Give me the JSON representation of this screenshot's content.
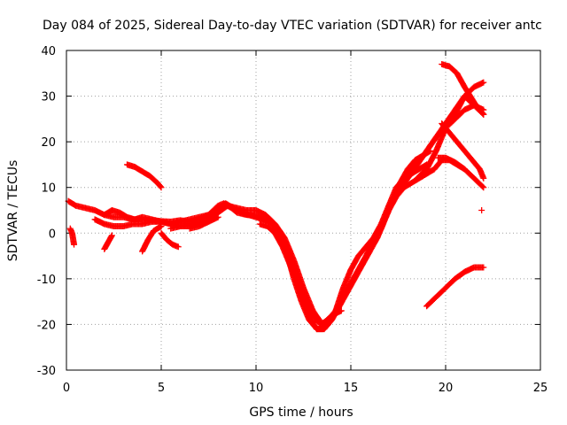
{
  "chart_data": {
    "type": "scatter",
    "title": "Day 084 of 2025, Sidereal Day-to-day VTEC variation (SDTVAR) for receiver antc",
    "xlabel": "GPS time / hours",
    "ylabel": "SDTVAR / TECUs",
    "xlim": [
      0,
      25
    ],
    "ylim": [
      -30,
      40
    ],
    "xticks": [
      0,
      5,
      10,
      15,
      20,
      25
    ],
    "yticks": [
      -30,
      -20,
      -10,
      0,
      10,
      20,
      30,
      40
    ],
    "grid": true,
    "marker": "+",
    "color": "#ff0000",
    "series": [
      {
        "name": "arc-main-1",
        "x": [
          0.1,
          0.5,
          1.0,
          1.5,
          2.0,
          2.5,
          3.0,
          3.5,
          4.0,
          4.5,
          5.0,
          5.5,
          6.0,
          6.5,
          7.0,
          7.5,
          8.0,
          8.3,
          8.7,
          9.0,
          9.5,
          10.0,
          10.5,
          11.0,
          11.5,
          12.0,
          12.3,
          12.6,
          12.9,
          13.2,
          13.5,
          13.8,
          14.2,
          14.6,
          15.0,
          15.4,
          15.8,
          16.2,
          16.6,
          17.0,
          17.4,
          17.8,
          18.2,
          18.6,
          19.0
        ],
        "y": [
          7,
          6,
          5.5,
          5,
          4,
          3.5,
          3.5,
          3,
          3,
          2.8,
          2.6,
          2.5,
          2.8,
          2.5,
          3,
          4,
          6,
          6.5,
          5.5,
          4.5,
          4,
          3.8,
          3,
          1.5,
          -2,
          -8,
          -12,
          -16,
          -19,
          -21,
          -21,
          -20,
          -17,
          -12,
          -8,
          -5,
          -3,
          -1,
          2,
          6,
          10,
          12,
          13,
          14,
          15
        ]
      },
      {
        "name": "arc-main-2",
        "x": [
          2.0,
          2.4,
          2.8,
          3.2,
          3.6,
          4.0,
          4.5,
          5.0,
          5.5,
          6.0,
          6.5,
          7.0,
          7.5,
          8.0,
          8.4,
          8.8,
          9.2,
          9.6,
          10.0,
          10.4,
          10.8,
          11.2,
          11.6,
          12.0,
          12.4,
          12.8,
          13.2,
          13.6,
          14.0,
          14.4,
          14.8,
          15.2,
          15.6,
          16.0,
          16.4,
          16.8,
          17.2,
          17.6,
          18.0,
          18.4,
          18.8,
          19.2
        ],
        "y": [
          4,
          5,
          4.5,
          3.5,
          3,
          3.5,
          3,
          2.5,
          2,
          2.5,
          3,
          3.5,
          4,
          5.5,
          6.5,
          5.5,
          4.5,
          4,
          3.5,
          3,
          2.5,
          0,
          -4,
          -10,
          -15,
          -19,
          -21,
          -21,
          -19,
          -16,
          -13,
          -10,
          -7,
          -4,
          -1,
          3,
          7,
          11,
          14,
          16,
          17,
          18
        ]
      },
      {
        "name": "arc-main-3",
        "x": [
          1.5,
          2.0,
          2.5,
          3.0,
          3.5,
          4.0,
          4.5,
          5.0,
          5.5,
          6.0,
          6.5,
          7.0,
          7.5,
          8.0,
          8.5,
          9.0,
          9.5,
          10.0,
          10.5,
          11.0,
          11.5,
          12.0,
          12.5,
          13.0,
          13.5,
          14.0,
          14.5
        ],
        "y": [
          3,
          2,
          1.5,
          1.5,
          2,
          2,
          2.5,
          2.5,
          2,
          1.5,
          1.5,
          2,
          3,
          4.5,
          6,
          5.5,
          5,
          5,
          4,
          2,
          -1,
          -6,
          -12,
          -17,
          -20,
          -18,
          -17
        ]
      },
      {
        "name": "arc-late-1",
        "x": [
          10.2,
          10.6,
          11.0,
          11.4,
          11.8,
          12.2,
          12.6,
          13.0,
          13.4,
          13.8,
          14.2,
          14.6,
          15.0,
          15.4,
          15.8,
          16.2,
          16.6,
          17.0,
          17.4,
          17.8,
          18.2,
          18.6,
          19.0,
          19.4,
          19.8,
          20.2,
          20.6,
          21.0
        ],
        "y": [
          2,
          1.5,
          0,
          -3,
          -7,
          -11,
          -15,
          -18,
          -20,
          -19,
          -17,
          -14,
          -11,
          -8,
          -5,
          -2,
          1,
          5,
          8,
          10,
          11,
          12,
          13,
          14,
          16,
          16,
          15,
          14
        ]
      },
      {
        "name": "arc-late-2",
        "x": [
          17.0,
          17.5,
          18.0,
          18.5,
          19.0,
          19.5,
          20.0,
          20.5,
          21.0,
          21.5,
          22.0
        ],
        "y": [
          6,
          9,
          12,
          15,
          18,
          21,
          24,
          27,
          30,
          28,
          26
        ]
      },
      {
        "name": "arc-late-3",
        "x": [
          17.5,
          18.0,
          18.5,
          19.0,
          19.5,
          20.0,
          20.5,
          21.0,
          21.5,
          22.0
        ],
        "y": [
          10,
          13,
          15,
          18,
          21,
          23,
          25,
          27,
          28,
          27
        ]
      },
      {
        "name": "arc-late-4",
        "x": [
          18.5,
          19.0,
          19.5,
          20.0,
          20.5,
          21.0,
          21.5,
          22.0
        ],
        "y": [
          12,
          14,
          18,
          23,
          26,
          30,
          32,
          33
        ]
      },
      {
        "name": "arc-peak",
        "x": [
          19.8,
          20.2,
          20.6,
          21.0,
          21.3,
          21.6,
          22.0
        ],
        "y": [
          37,
          36.5,
          35,
          32,
          30,
          28,
          26
        ]
      },
      {
        "name": "arc-descend-1",
        "x": [
          19.8,
          20.2,
          20.6,
          21.0,
          21.4,
          21.8,
          22.0
        ],
        "y": [
          24,
          22,
          20,
          18,
          16,
          14,
          12
        ]
      },
      {
        "name": "arc-descend-2",
        "x": [
          19.6,
          20.0,
          20.5,
          21.0,
          21.5,
          22.0
        ],
        "y": [
          16.5,
          16.5,
          15.5,
          14,
          12,
          10
        ]
      },
      {
        "name": "arc-bottom-right",
        "x": [
          19.0,
          19.5,
          20.0,
          20.5,
          21.0,
          21.5,
          22.0
        ],
        "y": [
          -16,
          -14,
          -12,
          -10,
          -8.5,
          -7.5,
          -7.5
        ]
      },
      {
        "name": "arc-isolated",
        "x": [
          21.9
        ],
        "y": [
          5
        ]
      },
      {
        "name": "arc-15",
        "x": [
          3.2,
          3.6,
          4.0,
          4.4,
          4.8,
          5.0
        ],
        "y": [
          15,
          14.5,
          13.5,
          12.5,
          11,
          10
        ]
      },
      {
        "name": "arc-start-drop",
        "x": [
          0.2,
          0.3,
          0.4
        ],
        "y": [
          1,
          0,
          -2.5
        ]
      },
      {
        "name": "arc-dip-2",
        "x": [
          2.0,
          2.2,
          2.4
        ],
        "y": [
          -3.5,
          -2,
          -0.5
        ]
      },
      {
        "name": "arc-dip-4",
        "x": [
          4.0,
          4.3,
          4.6,
          5.0
        ],
        "y": [
          -4,
          -1.5,
          0.5,
          1.5
        ]
      },
      {
        "name": "arc-dip-5",
        "x": [
          5.0,
          5.3,
          5.6,
          5.9
        ],
        "y": [
          0,
          -1.5,
          -2.5,
          -3
        ]
      },
      {
        "name": "arc-mid-1",
        "x": [
          5.5,
          6.0,
          6.5,
          7.0
        ],
        "y": [
          1,
          1.5,
          2,
          2.5
        ]
      },
      {
        "name": "arc-mid-2",
        "x": [
          6.5,
          7.0,
          7.5,
          8.0
        ],
        "y": [
          1,
          1.5,
          2.5,
          3.5
        ]
      }
    ]
  }
}
